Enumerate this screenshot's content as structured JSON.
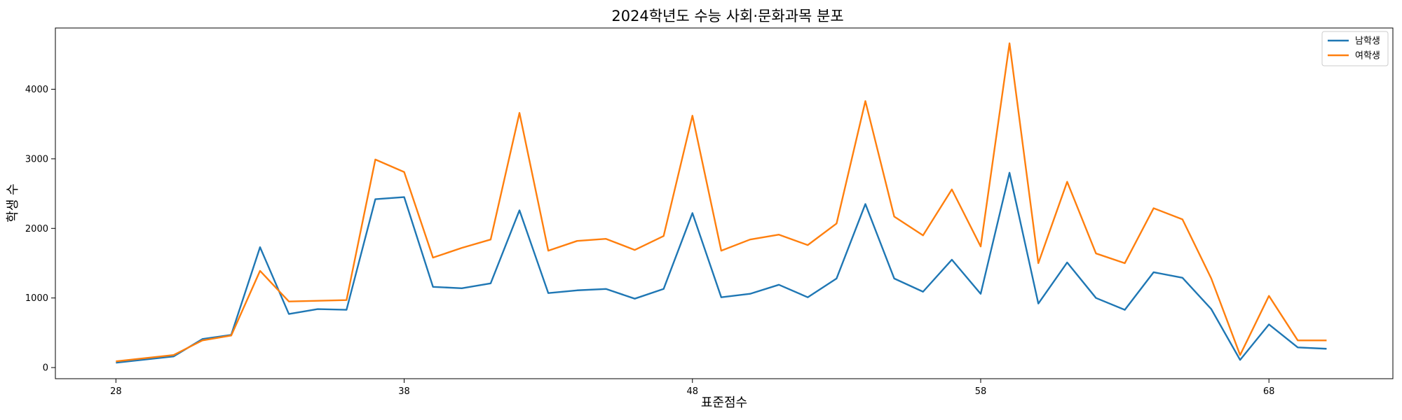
{
  "chart_data": {
    "type": "line",
    "title": "2024학년도 수능 사회·문화과목 분포",
    "xlabel": "표준점수",
    "ylabel": "학생 수",
    "xlim": [
      25.9,
      72.3
    ],
    "ylim": [
      -160,
      4880
    ],
    "xticks": [
      28,
      38,
      48,
      58,
      68
    ],
    "yticks": [
      0,
      1000,
      2000,
      3000,
      4000
    ],
    "grid": false,
    "legend_position": "top-right",
    "x": [
      28,
      30,
      31,
      32,
      33,
      34,
      35,
      36,
      37,
      38,
      39,
      40,
      41,
      42,
      43,
      44,
      45,
      46,
      47,
      48,
      49,
      50,
      51,
      52,
      53,
      54,
      55,
      56,
      57,
      58,
      59,
      60,
      61,
      62,
      63,
      64,
      65,
      66,
      67,
      68,
      69,
      70
    ],
    "series": [
      {
        "name": "남학생",
        "color": "#1f77b4",
        "values": [
          70,
          160,
          410,
          470,
          1730,
          770,
          840,
          830,
          2420,
          2450,
          1160,
          1140,
          1210,
          2260,
          1070,
          1110,
          1130,
          990,
          1130,
          2220,
          1010,
          1060,
          1190,
          1010,
          1280,
          2350,
          1280,
          1090,
          1550,
          1060,
          2800,
          920,
          1510,
          1000,
          830,
          1370,
          1290,
          840,
          110,
          620,
          290,
          270
        ]
      },
      {
        "name": "여학생",
        "color": "#ff7f0e",
        "values": [
          90,
          180,
          390,
          460,
          1390,
          950,
          960,
          970,
          2990,
          2810,
          1580,
          1720,
          1840,
          3660,
          1680,
          1820,
          1850,
          1690,
          1890,
          3620,
          1680,
          1840,
          1910,
          1760,
          2070,
          3830,
          2170,
          1900,
          2560,
          1740,
          4660,
          1500,
          2670,
          1640,
          1500,
          2290,
          2130,
          1280,
          180,
          1030,
          390,
          390
        ]
      }
    ]
  }
}
